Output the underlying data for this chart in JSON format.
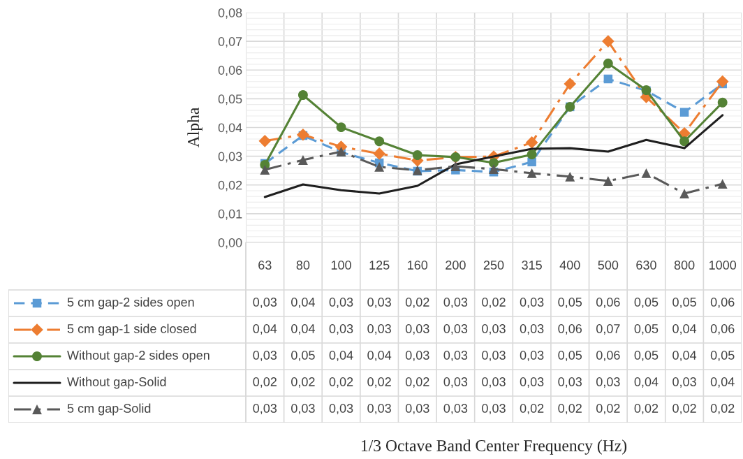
{
  "chart_data": {
    "type": "line",
    "annotations": [
      "1/3 Octave Band Center Frequency (Hz)"
    ],
    "ylabel": "Alpha",
    "categories": [
      "63",
      "80",
      "100",
      "125",
      "160",
      "200",
      "250",
      "315",
      "400",
      "500",
      "630",
      "800",
      "1000"
    ],
    "ylim": [
      0,
      0.08
    ],
    "yticks": [
      {
        "value": 0,
        "label": "0,00"
      },
      {
        "value": 0.01,
        "label": "0,01"
      },
      {
        "value": 0.02,
        "label": "0,02"
      },
      {
        "value": 0.03,
        "label": "0,03"
      },
      {
        "value": 0.04,
        "label": "0,04"
      },
      {
        "value": 0.05,
        "label": "0,05"
      },
      {
        "value": 0.06,
        "label": "0,06"
      },
      {
        "value": 0.07,
        "label": "0,07"
      },
      {
        "value": 0.08,
        "label": "0,08"
      }
    ],
    "grid": true,
    "legend": "bottom",
    "series": [
      {
        "name": "5 cm gap-2 sides open",
        "color": "#5b9bd5",
        "marker": "square",
        "line_style": "dashed",
        "values": [
          0.0275,
          0.0372,
          0.0314,
          0.0277,
          0.0248,
          0.0252,
          0.0245,
          0.028,
          0.0472,
          0.0569,
          0.0528,
          0.0453,
          0.0552
        ],
        "value_labels": [
          "0,03",
          "0,04",
          "0,03",
          "0,03",
          "0,02",
          "0,03",
          "0,02",
          "0,03",
          "0,05",
          "0,06",
          "0,05",
          "0,05",
          "0,06"
        ]
      },
      {
        "name": "5 cm gap-1 side closed",
        "color": "#ed7d31",
        "marker": "diamond",
        "line_style": "dashdot",
        "values": [
          0.0353,
          0.0375,
          0.0333,
          0.0309,
          0.0285,
          0.0297,
          0.0299,
          0.0348,
          0.0552,
          0.07,
          0.0506,
          0.038,
          0.056
        ],
        "value_labels": [
          "0,04",
          "0,04",
          "0,03",
          "0,03",
          "0,03",
          "0,03",
          "0,03",
          "0,03",
          "0,06",
          "0,07",
          "0,05",
          "0,04",
          "0,06"
        ]
      },
      {
        "name": "Without gap-2 sides open",
        "color": "#548235",
        "marker": "circle",
        "line_style": "solid",
        "values": [
          0.027,
          0.0513,
          0.0401,
          0.0352,
          0.0304,
          0.0297,
          0.0277,
          0.0306,
          0.0472,
          0.0623,
          0.053,
          0.0352,
          0.0487
        ],
        "value_labels": [
          "0,03",
          "0,05",
          "0,04",
          "0,04",
          "0,03",
          "0,03",
          "0,03",
          "0,03",
          "0,05",
          "0,06",
          "0,05",
          "0,04",
          "0,05"
        ]
      },
      {
        "name": "Without gap-Solid",
        "color": "#1f1f1f",
        "marker": "none",
        "line_style": "solid",
        "values": [
          0.0158,
          0.0202,
          0.0182,
          0.017,
          0.0197,
          0.0272,
          0.0299,
          0.0326,
          0.0328,
          0.0316,
          0.0357,
          0.0328,
          0.0443
        ],
        "value_labels": [
          "0,02",
          "0,02",
          "0,02",
          "0,02",
          "0,02",
          "0,03",
          "0,03",
          "0,03",
          "0,03",
          "0,03",
          "0,04",
          "0,03",
          "0,04"
        ]
      },
      {
        "name": "5 cm gap-Solid",
        "color": "#595959",
        "marker": "triangle",
        "line_style": "dashdot",
        "values": [
          0.0253,
          0.0287,
          0.0316,
          0.0263,
          0.0251,
          0.0265,
          0.0255,
          0.0241,
          0.0229,
          0.0214,
          0.0241,
          0.017,
          0.0204
        ],
        "value_labels": [
          "0,03",
          "0,03",
          "0,03",
          "0,03",
          "0,03",
          "0,03",
          "0,03",
          "0,02",
          "0,02",
          "0,02",
          "0,02",
          "0,02",
          "0,02"
        ]
      }
    ]
  }
}
